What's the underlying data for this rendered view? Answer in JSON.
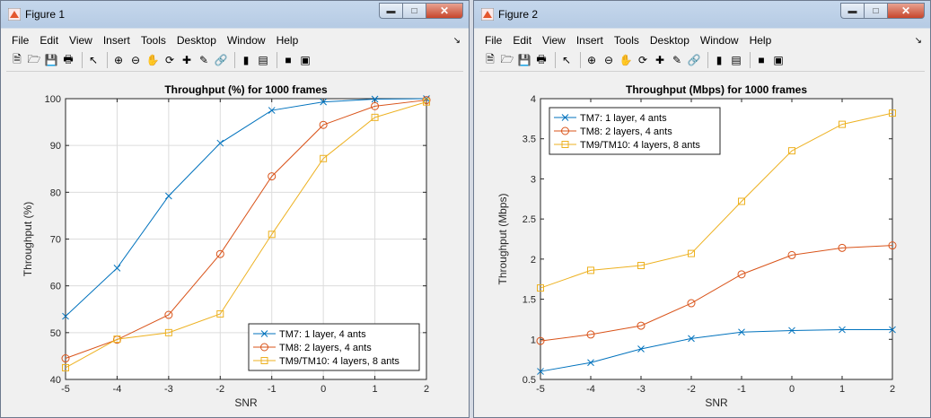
{
  "menu": [
    "File",
    "Edit",
    "View",
    "Insert",
    "Tools",
    "Desktop",
    "Window",
    "Help"
  ],
  "toolbar_icons": [
    "new-figure-icon",
    "open-file-icon",
    "save-icon",
    "print-icon",
    "pointer-icon",
    "zoom-in-icon",
    "zoom-out-icon",
    "pan-icon",
    "rotate-3d-icon",
    "data-cursor-icon",
    "brush-icon",
    "link-plot-icon",
    "colorbar-icon",
    "legend-icon",
    "hide-plot-tools-icon",
    "show-plot-tools-icon"
  ],
  "colors": {
    "series": [
      "#0072bd",
      "#d95319",
      "#edb120"
    ]
  },
  "window1": {
    "title": "Figure 1",
    "chart_data": {
      "type": "line",
      "title": "Throughput (%) for 1000 frames",
      "xlabel": "SNR",
      "ylabel": "Throughput (%)",
      "x": [
        -5,
        -4,
        -3,
        -2,
        -1,
        0,
        1,
        2
      ],
      "xlim": [
        -5,
        2
      ],
      "ylim": [
        40,
        100
      ],
      "xticks": [
        "-5",
        "-4",
        "-3",
        "-2",
        "-1",
        "0",
        "1",
        "2"
      ],
      "yticks": [
        "40",
        "50",
        "60",
        "70",
        "80",
        "90",
        "100"
      ],
      "grid": true,
      "legend_position": "bottom-right",
      "series": [
        {
          "name": "TM7: 1 layer, 4 ants",
          "marker": "x",
          "values": [
            53.5,
            63.8,
            79.2,
            90.5,
            97.5,
            99.3,
            99.9,
            100
          ]
        },
        {
          "name": "TM8: 2 layers, 4 ants",
          "marker": "o",
          "values": [
            44.5,
            48.5,
            53.8,
            66.8,
            83.4,
            94.4,
            98.4,
            99.7
          ]
        },
        {
          "name": "TM9/TM10: 4 layers, 8 ants",
          "marker": "s",
          "values": [
            42.5,
            48.6,
            50,
            54,
            71,
            87.2,
            96,
            99.3
          ]
        }
      ]
    }
  },
  "window2": {
    "title": "Figure 2",
    "chart_data": {
      "type": "line",
      "title": "Throughput (Mbps) for 1000 frames",
      "xlabel": "SNR",
      "ylabel": "Throughput (Mbps)",
      "x": [
        -5,
        -4,
        -3,
        -2,
        -1,
        0,
        1,
        2
      ],
      "xlim": [
        -5,
        2
      ],
      "ylim": [
        0.5,
        4
      ],
      "xticks": [
        "-5",
        "-4",
        "-3",
        "-2",
        "-1",
        "0",
        "1",
        "2"
      ],
      "yticks": [
        "0.5",
        "1",
        "1.5",
        "2",
        "2.5",
        "3",
        "3.5",
        "4"
      ],
      "grid": false,
      "legend_position": "top-left",
      "series": [
        {
          "name": "TM7: 1 layer, 4 ants",
          "marker": "x",
          "values": [
            0.6,
            0.71,
            0.88,
            1.01,
            1.09,
            1.11,
            1.12,
            1.12
          ]
        },
        {
          "name": "TM8: 2 layers, 4 ants",
          "marker": "o",
          "values": [
            0.98,
            1.06,
            1.17,
            1.45,
            1.81,
            2.05,
            2.14,
            2.17
          ]
        },
        {
          "name": "TM9/TM10: 4 layers, 8 ants",
          "marker": "s",
          "values": [
            1.64,
            1.86,
            1.92,
            2.07,
            2.72,
            3.35,
            3.68,
            3.82
          ]
        }
      ]
    }
  }
}
